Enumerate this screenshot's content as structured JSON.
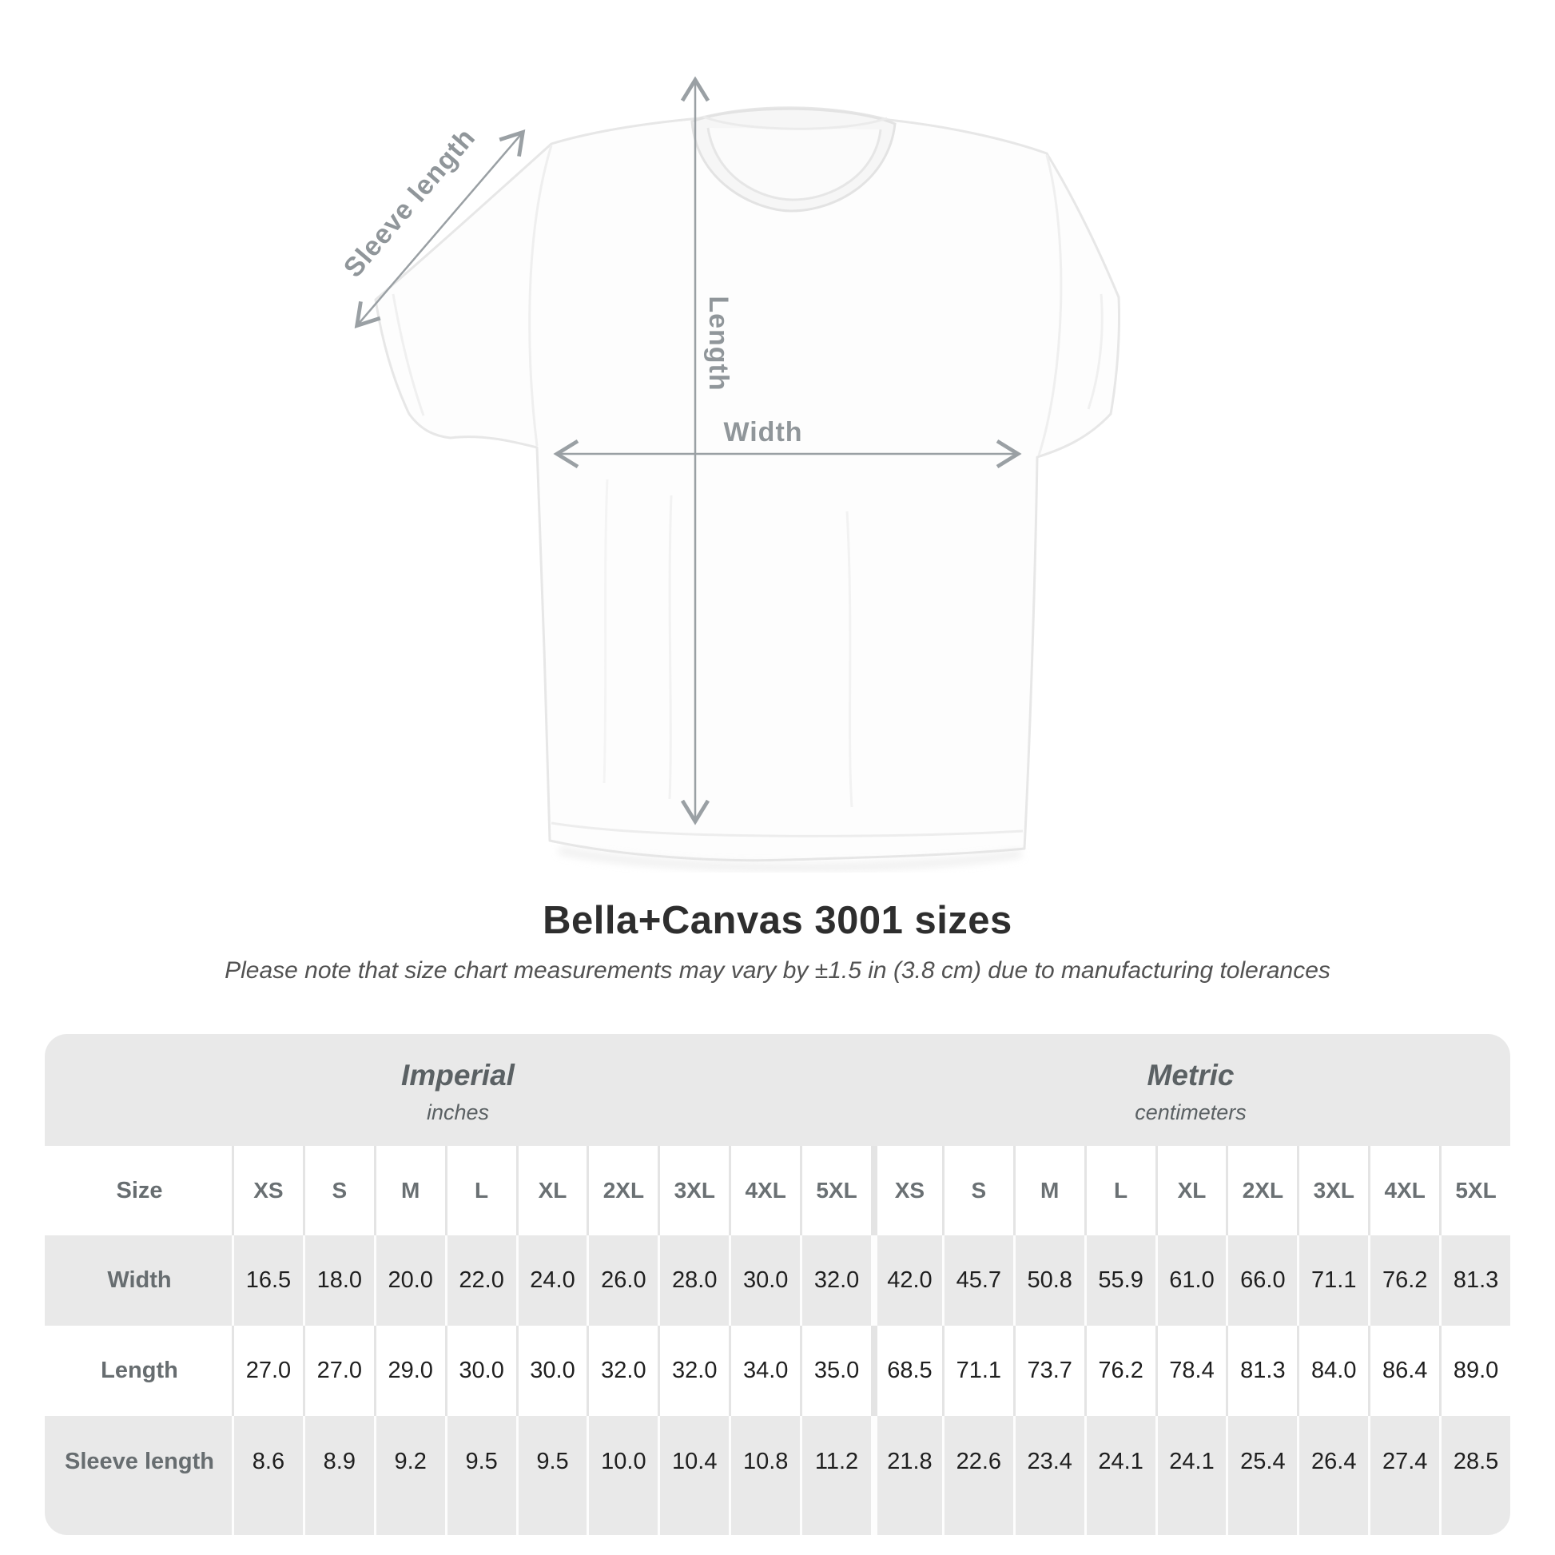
{
  "diagram": {
    "labels": {
      "sleeve_length": "Sleeve length",
      "length": "Length",
      "width": "Width"
    },
    "arrow_color": "#9aa0a4",
    "label_color": "#90969a"
  },
  "title": "Bella+Canvas 3001 sizes",
  "subtitle": "Please note that size chart measurements may vary by ±1.5 in (3.8 cm) due to manufacturing tolerances",
  "size_table": {
    "section_headers": [
      {
        "name": "Imperial",
        "unit": "inches"
      },
      {
        "name": "Metric",
        "unit": "centimeters"
      }
    ],
    "size_col_header": "Size",
    "sizes": [
      "XS",
      "S",
      "M",
      "L",
      "XL",
      "2XL",
      "3XL",
      "4XL",
      "5XL"
    ],
    "rows": [
      {
        "label": "Width",
        "imperial": [
          "16.5",
          "18.0",
          "20.0",
          "22.0",
          "24.0",
          "26.0",
          "28.0",
          "30.0",
          "32.0"
        ],
        "metric": [
          "42.0",
          "45.7",
          "50.8",
          "55.9",
          "61.0",
          "66.0",
          "71.1",
          "76.2",
          "81.3"
        ]
      },
      {
        "label": "Length",
        "imperial": [
          "27.0",
          "27.0",
          "29.0",
          "30.0",
          "30.0",
          "32.0",
          "32.0",
          "34.0",
          "35.0"
        ],
        "metric": [
          "68.5",
          "71.1",
          "73.7",
          "76.2",
          "78.4",
          "81.3",
          "84.0",
          "86.4",
          "89.0"
        ]
      },
      {
        "label": "Sleeve length",
        "imperial": [
          "8.6",
          "8.9",
          "9.2",
          "9.5",
          "9.5",
          "10.0",
          "10.4",
          "10.8",
          "11.2"
        ],
        "metric": [
          "21.8",
          "22.6",
          "23.4",
          "24.1",
          "24.1",
          "25.4",
          "26.4",
          "27.4",
          "28.5"
        ]
      }
    ],
    "table_bg_color": "#e9e9e9"
  },
  "chart_data": {
    "type": "table",
    "title": "Bella+Canvas 3001 sizes",
    "note": "Please note that size chart measurements may vary by ±1.5 in (3.8 cm) due to manufacturing tolerances",
    "columns": [
      "Size",
      "XS",
      "S",
      "M",
      "L",
      "XL",
      "2XL",
      "3XL",
      "4XL",
      "5XL"
    ],
    "sections": [
      {
        "name": "Imperial",
        "unit": "inches",
        "rows": [
          {
            "label": "Width",
            "values": [
              16.5,
              18.0,
              20.0,
              22.0,
              24.0,
              26.0,
              28.0,
              30.0,
              32.0
            ]
          },
          {
            "label": "Length",
            "values": [
              27.0,
              27.0,
              29.0,
              30.0,
              30.0,
              32.0,
              32.0,
              34.0,
              35.0
            ]
          },
          {
            "label": "Sleeve length",
            "values": [
              8.6,
              8.9,
              9.2,
              9.5,
              9.5,
              10.0,
              10.4,
              10.8,
              11.2
            ]
          }
        ]
      },
      {
        "name": "Metric",
        "unit": "centimeters",
        "rows": [
          {
            "label": "Width",
            "values": [
              42.0,
              45.7,
              50.8,
              55.9,
              61.0,
              66.0,
              71.1,
              76.2,
              81.3
            ]
          },
          {
            "label": "Length",
            "values": [
              68.5,
              71.1,
              73.7,
              76.2,
              78.4,
              81.3,
              84.0,
              86.4,
              89.0
            ]
          },
          {
            "label": "Sleeve length",
            "values": [
              21.8,
              22.6,
              23.4,
              24.1,
              24.1,
              25.4,
              26.4,
              27.4,
              28.5
            ]
          }
        ]
      }
    ]
  }
}
